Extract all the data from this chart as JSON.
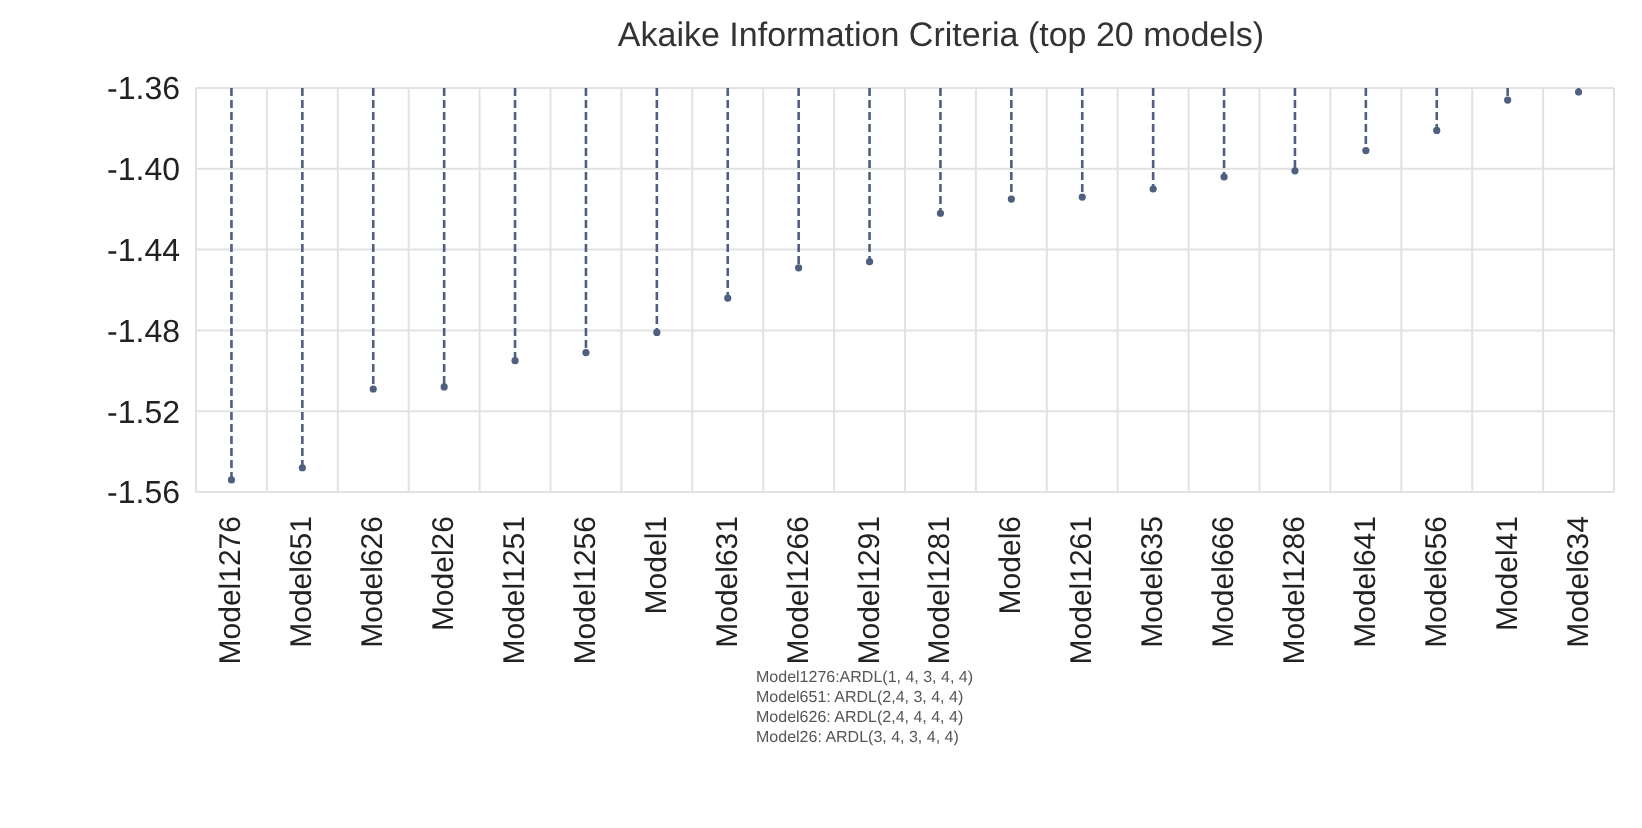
{
  "chart_data": {
    "type": "lollipop",
    "title": "Akaike Information Criteria (top 20 models)",
    "categories": [
      "Model1276",
      "Model651",
      "Model626",
      "Model26",
      "Model1251",
      "Model1256",
      "Model1",
      "Model631",
      "Model1266",
      "Model1291",
      "Model1281",
      "Model6",
      "Model1261",
      "Model635",
      "Model666",
      "Model1286",
      "Model641",
      "Model656",
      "Model41",
      "Model634"
    ],
    "values": [
      -1.554,
      -1.548,
      -1.509,
      -1.508,
      -1.495,
      -1.491,
      -1.481,
      -1.464,
      -1.449,
      -1.446,
      -1.422,
      -1.415,
      -1.414,
      -1.41,
      -1.404,
      -1.401,
      -1.391,
      -1.381,
      -1.366,
      -1.362
    ],
    "color": "#4f5f7f",
    "ylim": [
      -1.56,
      -1.36
    ],
    "yticks": [
      -1.56,
      -1.52,
      -1.48,
      -1.44,
      {
        "value": -1.4,
        "label": "-1.40"
      },
      -1.36
    ],
    "grid": true,
    "line_style": "dashed",
    "marker": "circle",
    "annotations": [
      "Model1276:ARDL(1, 4, 3, 4, 4)",
      "Model651: ARDL(2,4, 3, 4, 4)",
      "Model626: ARDL(2,4, 4, 4, 4)",
      "Model26: ARDL(3, 4, 3, 4, 4)"
    ]
  }
}
